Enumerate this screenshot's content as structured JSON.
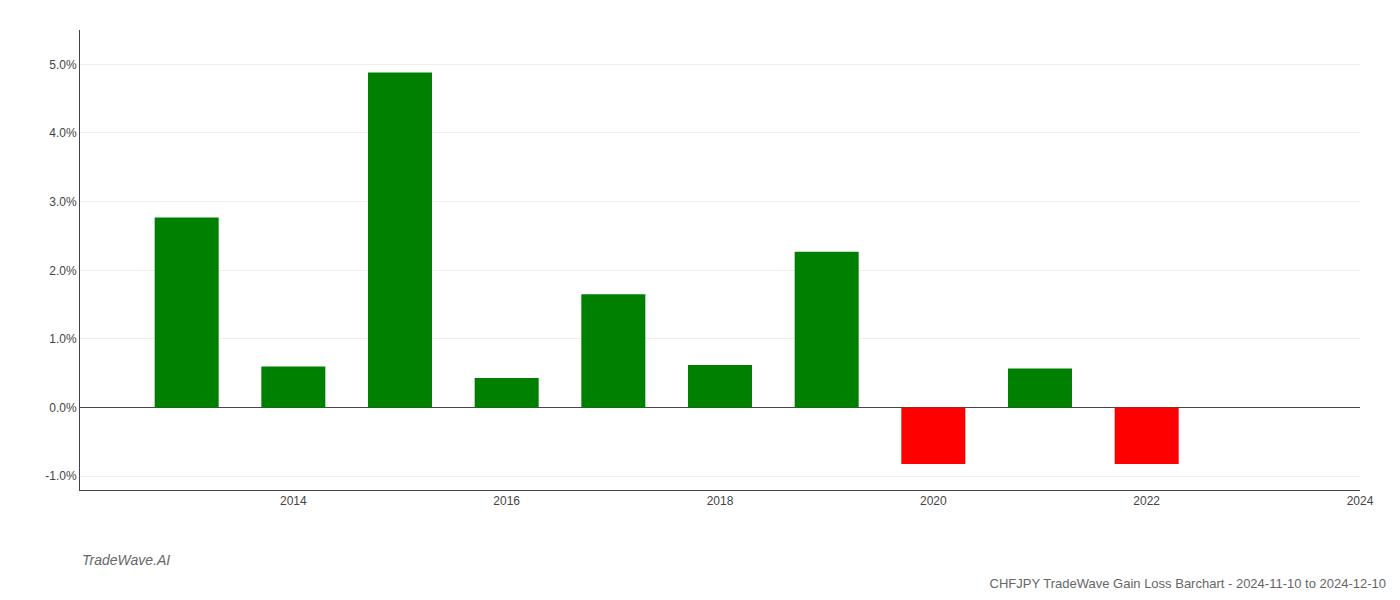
{
  "chart_data": {
    "type": "bar",
    "title": "CHFJPY TradeWave Gain Loss Barchart - 2024-11-10 to 2024-12-10",
    "annotations": [
      "TradeWave.AI"
    ],
    "x": [
      2013,
      2014,
      2015,
      2016,
      2017,
      2018,
      2019,
      2020,
      2021,
      2022,
      2023
    ],
    "values": [
      0.0277,
      0.006,
      0.0488,
      0.0043,
      0.0165,
      0.0062,
      0.0227,
      -0.0082,
      0.0057,
      -0.0082,
      0.0
    ],
    "colors": [
      "#008000",
      "#008000",
      "#008000",
      "#008000",
      "#008000",
      "#008000",
      "#008000",
      "#ff0000",
      "#008000",
      "#ff0000",
      "#008000"
    ],
    "xlim": [
      2012,
      2024
    ],
    "xticks": [
      2014,
      2016,
      2018,
      2020,
      2022,
      2024
    ],
    "ylim": [
      -0.012,
      0.055
    ],
    "yticks": [
      {
        "value": -0.01,
        "label": "-1.0%"
      },
      {
        "value": 0.0,
        "label": "0.0%"
      },
      {
        "value": 0.01,
        "label": "1.0%"
      },
      {
        "value": 0.02,
        "label": "2.0%"
      },
      {
        "value": 0.03,
        "label": "3.0%"
      },
      {
        "value": 0.04,
        "label": "4.0%"
      },
      {
        "value": 0.05,
        "label": "5.0%"
      }
    ],
    "grid": true
  }
}
